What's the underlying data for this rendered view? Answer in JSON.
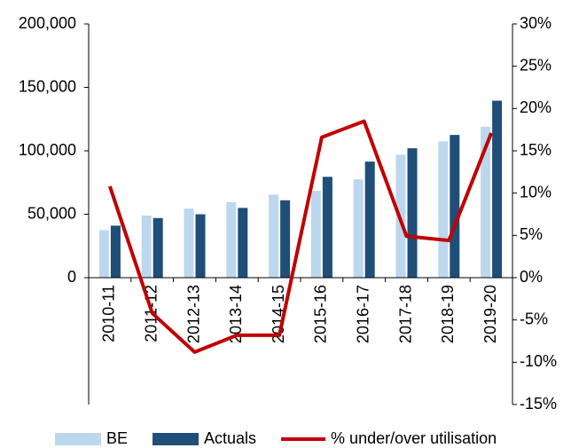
{
  "chart_data": {
    "type": "bar",
    "categories": [
      "2010-11",
      "2011-12",
      "2012-13",
      "2013-14",
      "2014-15",
      "2015-16",
      "2016-17",
      "2017-18",
      "2018-19",
      "2019-20"
    ],
    "series": [
      {
        "name": "BE",
        "color": "#bdd7ee",
        "values": [
          37500,
          49000,
          54500,
          59500,
          65500,
          68500,
          77500,
          97000,
          107500,
          119000
        ]
      },
      {
        "name": "Actuals",
        "color": "#1f4e79",
        "values": [
          41000,
          47000,
          50000,
          55000,
          61000,
          79500,
          91500,
          102000,
          112500,
          139500
        ]
      },
      {
        "name": "% under/over utilisation",
        "color": "#c00000",
        "axis": "y2",
        "values": [
          10.8,
          -4.2,
          -8.8,
          -6.8,
          -6.8,
          16.6,
          18.5,
          4.9,
          4.4,
          17.1
        ]
      }
    ],
    "ylim": [
      -100000,
      200000
    ],
    "yticks": [
      {
        "value": 0,
        "label": "0"
      },
      {
        "value": 50000,
        "label": "50,000"
      },
      {
        "value": 100000,
        "label": "100,000"
      },
      {
        "value": 150000,
        "label": "150,000"
      },
      {
        "value": 200000,
        "label": "200,000"
      }
    ],
    "y2lim": [
      -15,
      30
    ],
    "y2ticks": [
      {
        "value": -15,
        "label": "-15%"
      },
      {
        "value": -10,
        "label": "-10%"
      },
      {
        "value": -5,
        "label": "-5%"
      },
      {
        "value": 0,
        "label": "0%"
      },
      {
        "value": 5,
        "label": "5%"
      },
      {
        "value": 10,
        "label": "10%"
      },
      {
        "value": 15,
        "label": "15%"
      },
      {
        "value": 20,
        "label": "20%"
      },
      {
        "value": 25,
        "label": "25%"
      },
      {
        "value": 30,
        "label": "30%"
      }
    ],
    "legend": "bottom"
  }
}
